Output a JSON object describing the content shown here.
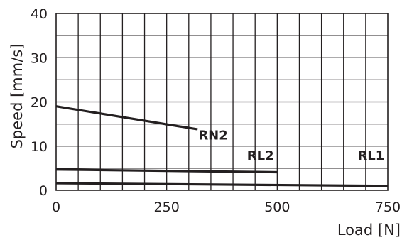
{
  "chart_data": {
    "type": "line",
    "xlabel": "Load [N]",
    "ylabel": "Speed [mm/s]",
    "xlim": [
      0,
      750
    ],
    "ylim": [
      0,
      40
    ],
    "x_ticks": [
      "0",
      "250",
      "500",
      "750"
    ],
    "y_ticks": [
      "0",
      "10",
      "20",
      "30",
      "40"
    ],
    "grid": true,
    "series": [
      {
        "name": "RN2",
        "points": [
          [
            0,
            19
          ],
          [
            320,
            13.8
          ]
        ],
        "label_at": [
          355,
          11.5
        ]
      },
      {
        "name": "RL2",
        "points": [
          [
            0,
            4.7
          ],
          [
            500,
            4.1
          ]
        ],
        "label_at": [
          462,
          6.9
        ]
      },
      {
        "name": "RL1",
        "points": [
          [
            0,
            1.6
          ],
          [
            750,
            1.0
          ]
        ],
        "label_at": [
          712,
          6.9
        ]
      }
    ]
  }
}
